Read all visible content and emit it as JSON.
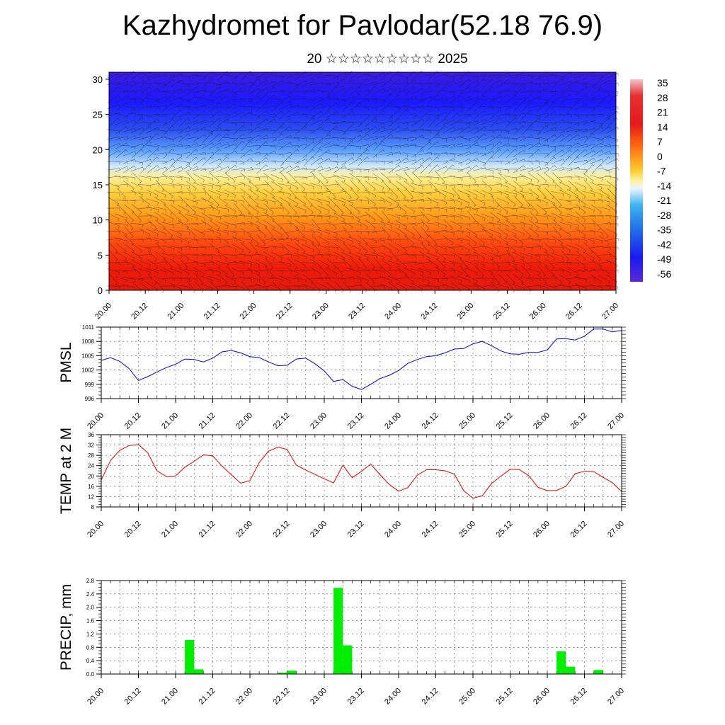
{
  "title": "Kazhydromet for Pavlodar(52.18 76.9)",
  "subtitle": "20 ☆☆☆☆☆☆☆☆☆ 2025",
  "time_ticks": [
    "20.00",
    "20.12",
    "21.00",
    "21.12",
    "22.00",
    "22.12",
    "23.00",
    "23.12",
    "24.00",
    "24.12",
    "25.00",
    "25.12",
    "26.00",
    "26.12",
    "27.00"
  ],
  "colors": {
    "pressure_line": "#0000dd",
    "temperature_line": "#dd0000",
    "precip_bar": "#00ee00"
  },
  "chart_data": [
    {
      "type": "heatmap",
      "title": "Kazhydromet for Pavlodar(52.18 76.9)",
      "subtitle": "20 ☆☆☆☆☆☆☆☆☆ 2025",
      "x_ticks": [
        "20.00",
        "20.12",
        "21.00",
        "21.12",
        "22.00",
        "22.12",
        "23.00",
        "23.12",
        "24.00",
        "24.12",
        "25.00",
        "25.12",
        "26.00",
        "26.12",
        "27.00"
      ],
      "y_ticks": [
        0,
        5,
        10,
        15,
        20,
        25,
        30
      ],
      "ylim": [
        0,
        31
      ],
      "colorbar_labels": [
        "35",
        "28",
        "21",
        "14",
        "7",
        "0",
        "-7",
        "-14",
        "-21",
        "-28",
        "-35",
        "-42",
        "-49",
        "-56"
      ],
      "overlay": "wind barbs"
    },
    {
      "type": "line",
      "ylabel": "PMSL",
      "ylim": [
        996,
        1011
      ],
      "y_ticks": [
        996,
        999,
        1002,
        1005,
        1008,
        1011
      ],
      "x_ticks": [
        "20.00",
        "20.12",
        "21.00",
        "21.12",
        "22.00",
        "22.12",
        "23.00",
        "23.12",
        "24.00",
        "24.12",
        "25.00",
        "25.12",
        "26.00",
        "26.12",
        "27.00"
      ],
      "x_hours": [
        0,
        3,
        6,
        9,
        12,
        15,
        18,
        21,
        24,
        27,
        30,
        33,
        36,
        39,
        42,
        45,
        48,
        51,
        54,
        57,
        60,
        63,
        66,
        69,
        72,
        75,
        78,
        81,
        84,
        87,
        90,
        93,
        96,
        99,
        102,
        105,
        108,
        111,
        114,
        117,
        120,
        123,
        126,
        129,
        132,
        135,
        138,
        141,
        144,
        147,
        150,
        153,
        156,
        159,
        162,
        165,
        168
      ],
      "values": [
        1004.0,
        1004.6,
        1003.8,
        1002.3,
        999.8,
        1000.6,
        1001.6,
        1002.5,
        1003.2,
        1004.3,
        1004.2,
        1003.7,
        1004.5,
        1005.8,
        1006.1,
        1005.6,
        1004.8,
        1004.6,
        1003.7,
        1002.9,
        1003.0,
        1004.3,
        1004.5,
        1003.3,
        1001.8,
        999.6,
        1000.0,
        998.6,
        997.9,
        999.0,
        1000.2,
        1000.9,
        1001.9,
        1003.4,
        1004.2,
        1004.8,
        1005.0,
        1005.6,
        1006.4,
        1006.5,
        1007.5,
        1008.0,
        1007.1,
        1006.0,
        1005.4,
        1005.3,
        1005.7,
        1005.7,
        1006.2,
        1008.5,
        1008.6,
        1008.3,
        1009.1,
        1010.6,
        1010.6,
        1010.0,
        1010.3
      ]
    },
    {
      "type": "line",
      "ylabel": "TEMP at 2 M",
      "ylim": [
        8,
        36
      ],
      "y_ticks": [
        8,
        12,
        16,
        20,
        24,
        28,
        32,
        36
      ],
      "x_ticks": [
        "20.00",
        "20.12",
        "21.00",
        "21.12",
        "22.00",
        "22.12",
        "23.00",
        "23.12",
        "24.00",
        "24.12",
        "25.00",
        "25.12",
        "26.00",
        "26.12",
        "27.00"
      ],
      "x_hours": [
        0,
        3,
        6,
        9,
        12,
        15,
        18,
        21,
        24,
        27,
        30,
        33,
        36,
        39,
        42,
        45,
        48,
        51,
        54,
        57,
        60,
        63,
        66,
        69,
        72,
        75,
        78,
        81,
        84,
        87,
        90,
        93,
        96,
        99,
        102,
        105,
        108,
        111,
        114,
        117,
        120,
        123,
        126,
        129,
        132,
        135,
        138,
        141,
        144,
        147,
        150,
        153,
        156,
        159,
        162,
        165,
        168
      ],
      "values": [
        18.5,
        26.0,
        30.0,
        31.8,
        32.2,
        29.0,
        22.0,
        19.8,
        20.0,
        23.4,
        25.7,
        28.2,
        27.8,
        23.8,
        20.5,
        17.2,
        18.2,
        25.2,
        29.6,
        31.2,
        30.3,
        24.2,
        22.3,
        20.6,
        18.9,
        17.3,
        24.2,
        19.3,
        21.8,
        24.6,
        20.5,
        16.7,
        14.1,
        15.5,
        20.3,
        22.4,
        22.4,
        22.0,
        20.7,
        14.3,
        11.4,
        12.3,
        17.1,
        19.9,
        22.6,
        22.5,
        20.1,
        15.6,
        14.3,
        14.4,
        16.0,
        20.9,
        21.8,
        21.7,
        19.5,
        17.4,
        14.0
      ]
    },
    {
      "type": "bar",
      "ylabel": "PRECIP, mm",
      "ylim": [
        0,
        2.8
      ],
      "y_ticks": [
        "0.0",
        "0.4",
        "0.8",
        "1.2",
        "1.6",
        "2.0",
        "2.4",
        "2.8"
      ],
      "x_ticks": [
        "20.00",
        "20.12",
        "21.00",
        "21.12",
        "22.00",
        "22.12",
        "23.00",
        "23.12",
        "24.00",
        "24.12",
        "25.00",
        "25.12",
        "26.00",
        "26.12",
        "27.00"
      ],
      "x_hours": [
        27,
        30,
        57,
        60,
        75,
        78,
        147,
        150,
        159
      ],
      "values": [
        1.02,
        0.14,
        0.04,
        0.1,
        2.58,
        0.86,
        0.68,
        0.22,
        0.12
      ]
    }
  ]
}
